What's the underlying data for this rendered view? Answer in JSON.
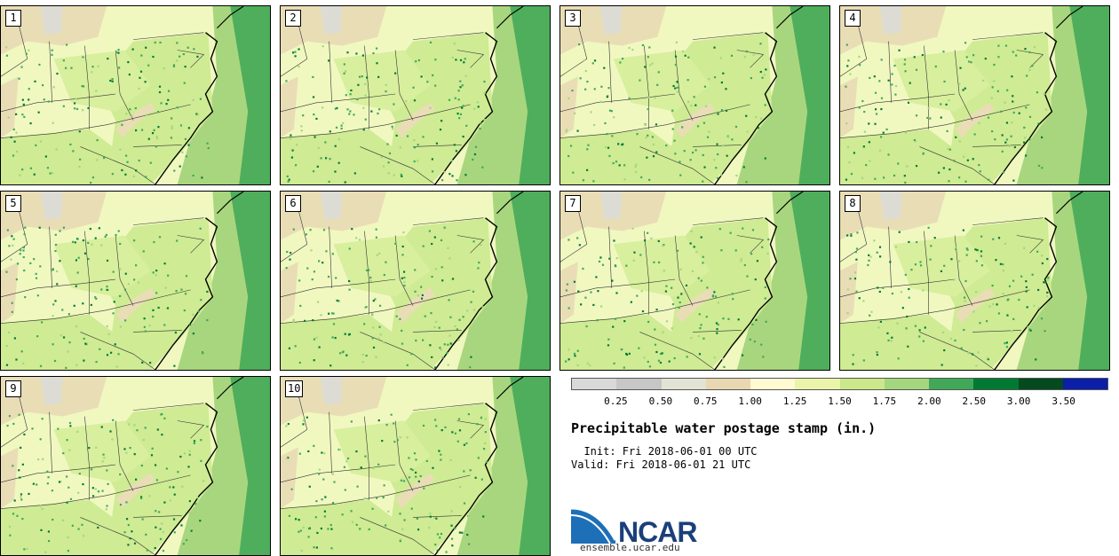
{
  "panels": [
    {
      "label": "1"
    },
    {
      "label": "2"
    },
    {
      "label": "3"
    },
    {
      "label": "4"
    },
    {
      "label": "5"
    },
    {
      "label": "6"
    },
    {
      "label": "7"
    },
    {
      "label": "8"
    },
    {
      "label": "9"
    },
    {
      "label": "10"
    }
  ],
  "colorbar": {
    "colors": [
      "#d9d9d9",
      "#c7c7c7",
      "#e3e3d3",
      "#e8d7b0",
      "#fffad2",
      "#eaf5a9",
      "#cbe98b",
      "#a4d67e",
      "#41a85a",
      "#007a33",
      "#034a1f",
      "#0b1fa8"
    ],
    "tick_labels": [
      "0.25",
      "0.50",
      "0.75",
      "1.00",
      "1.25",
      "1.50",
      "1.75",
      "2.00",
      "2.50",
      "3.00",
      "3.50"
    ]
  },
  "title": "Precipitable water postage stamp (in.)",
  "init": "  Init: Fri 2018-06-01 00 UTC",
  "valid": "Valid: Fri 2018-06-01 21 UTC",
  "logo": {
    "text": "NCAR",
    "url": "ensemble.ucar.edu"
  }
}
